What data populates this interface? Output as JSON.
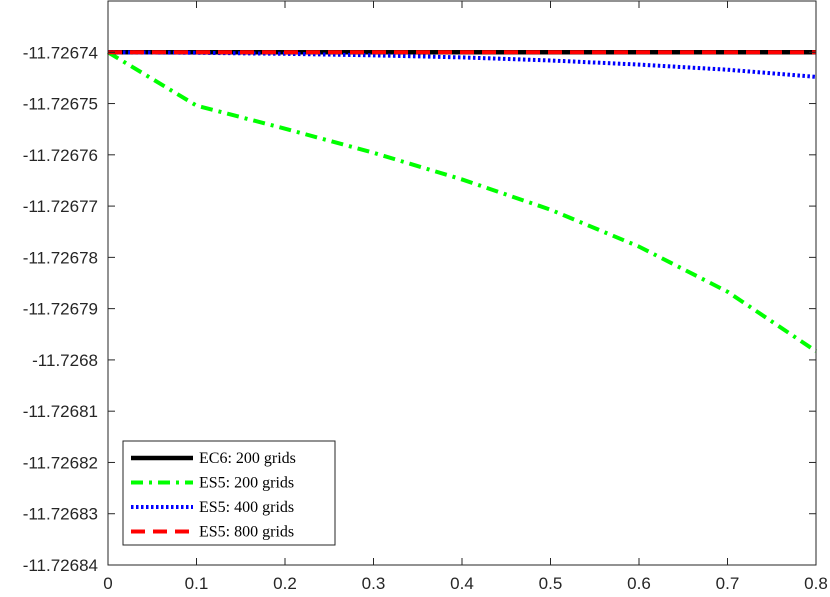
{
  "chart_data": {
    "type": "line",
    "title": "",
    "xlabel": "",
    "ylabel": "",
    "xlim": [
      0,
      0.8
    ],
    "ylim": [
      -11.72684,
      -11.72673
    ],
    "x_ticks": [
      0,
      0.1,
      0.2,
      0.3,
      0.4,
      0.5,
      0.6,
      0.7,
      0.8
    ],
    "x_tick_labels": [
      "0",
      "0.1",
      "0.2",
      "0.3",
      "0.4",
      "0.5",
      "0.6",
      "0.7",
      "0.8"
    ],
    "y_ticks": [
      -11.72674,
      -11.72675,
      -11.72676,
      -11.72677,
      -11.72678,
      -11.72679,
      -11.7268,
      -11.72681,
      -11.72682,
      -11.72683,
      -11.72684
    ],
    "y_tick_labels": [
      "-11.72674",
      "-11.72675",
      "-11.72676",
      "-11.72677",
      "-11.72678",
      "-11.72679",
      "-11.7268",
      "-11.72681",
      "-11.72682",
      "-11.72683",
      "-11.72684"
    ],
    "grid": false,
    "legend_position": "bottom-left",
    "series": [
      {
        "name": "EC6: 200 grids",
        "color": "#000000",
        "style": "solid",
        "x": [
          0,
          0.1,
          0.2,
          0.3,
          0.4,
          0.5,
          0.6,
          0.7,
          0.8
        ],
        "y": [
          -11.72674,
          -11.72674,
          -11.72674,
          -11.72674,
          -11.72674,
          -11.72674,
          -11.72674,
          -11.72674,
          -11.72674
        ]
      },
      {
        "name": "ES5: 200 grids",
        "color": "#00ff00",
        "style": "dashdot",
        "x": [
          0,
          0.1,
          0.2,
          0.3,
          0.4,
          0.5,
          0.6,
          0.7,
          0.8
        ],
        "y": [
          -11.72674,
          -11.7267504,
          -11.7267549,
          -11.7267596,
          -11.7267648,
          -11.7267707,
          -11.7267779,
          -11.7267867,
          -11.7267983
        ]
      },
      {
        "name": "ES5: 400 grids",
        "color": "#0000ff",
        "style": "dotted",
        "x": [
          0,
          0.1,
          0.2,
          0.3,
          0.4,
          0.5,
          0.6,
          0.7,
          0.8
        ],
        "y": [
          -11.72674,
          -11.7267401,
          -11.7267403,
          -11.7267406,
          -11.726741,
          -11.7267416,
          -11.7267424,
          -11.7267434,
          -11.7267448
        ]
      },
      {
        "name": "ES5: 800 grids",
        "color": "#ff0000",
        "style": "dashed",
        "x": [
          0,
          0.1,
          0.2,
          0.3,
          0.4,
          0.5,
          0.6,
          0.7,
          0.8
        ],
        "y": [
          -11.72674,
          -11.72674,
          -11.72674,
          -11.72674,
          -11.72674,
          -11.72674,
          -11.72674,
          -11.72674,
          -11.72674
        ]
      }
    ]
  }
}
